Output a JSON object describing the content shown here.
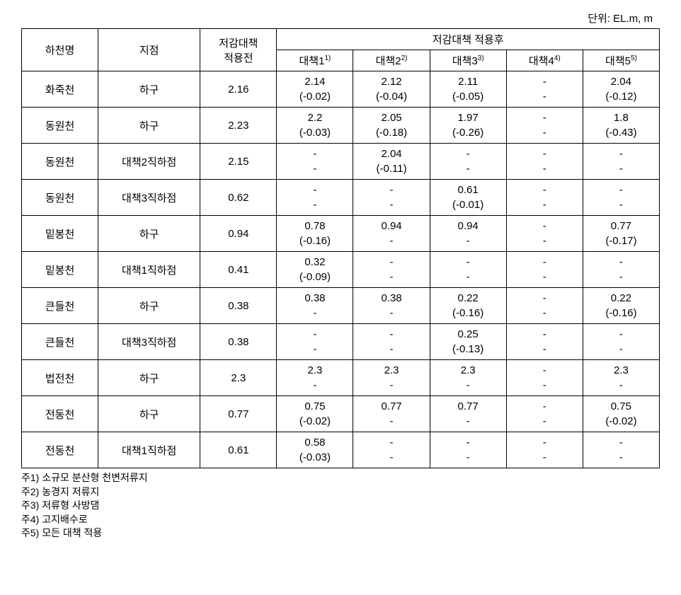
{
  "unit_label": "단위: EL.m, m",
  "headers": {
    "river": "하천명",
    "point": "지점",
    "before": "저감대책\n적용전",
    "after_group": "저감대책 적용후",
    "m1": "대책1",
    "m1_sup": "1)",
    "m2": "대책2",
    "m2_sup": "2)",
    "m3": "대책3",
    "m3_sup": "3)",
    "m4": "대책4",
    "m4_sup": "4)",
    "m5": "대책5",
    "m5_sup": "5)"
  },
  "rows": [
    {
      "river": "화죽천",
      "point": "하구",
      "before": "2.16",
      "m1": [
        "2.14",
        "(-0.02)"
      ],
      "m2": [
        "2.12",
        "(-0.04)"
      ],
      "m3": [
        "2.11",
        "(-0.05)"
      ],
      "m4": [
        "-",
        "-"
      ],
      "m5": [
        "2.04",
        "(-0.12)"
      ]
    },
    {
      "river": "동원천",
      "point": "하구",
      "before": "2.23",
      "m1": [
        "2.2",
        "(-0.03)"
      ],
      "m2": [
        "2.05",
        "(-0.18)"
      ],
      "m3": [
        "1.97",
        "(-0.26)"
      ],
      "m4": [
        "-",
        "-"
      ],
      "m5": [
        "1.8",
        "(-0.43)"
      ]
    },
    {
      "river": "동원천",
      "point": "대책2직하점",
      "before": "2.15",
      "m1": [
        "-",
        "-"
      ],
      "m2": [
        "2.04",
        "(-0.11)"
      ],
      "m3": [
        "-",
        "-"
      ],
      "m4": [
        "-",
        "-"
      ],
      "m5": [
        "-",
        "-"
      ]
    },
    {
      "river": "동원천",
      "point": "대책3직하점",
      "before": "0.62",
      "m1": [
        "-",
        "-"
      ],
      "m2": [
        "-",
        "-"
      ],
      "m3": [
        "0.61",
        "(-0.01)"
      ],
      "m4": [
        "-",
        "-"
      ],
      "m5": [
        "-",
        "-"
      ]
    },
    {
      "river": "밑봉천",
      "point": "하구",
      "before": "0.94",
      "m1": [
        "0.78",
        "(-0.16)"
      ],
      "m2": [
        "0.94",
        "-"
      ],
      "m3": [
        "0.94",
        "-"
      ],
      "m4": [
        "-",
        "-"
      ],
      "m5": [
        "0.77",
        "(-0.17)"
      ]
    },
    {
      "river": "밑봉천",
      "point": "대책1직하점",
      "before": "0.41",
      "m1": [
        "0.32",
        "(-0.09)"
      ],
      "m2": [
        "-",
        "-"
      ],
      "m3": [
        "-",
        "-"
      ],
      "m4": [
        "-",
        "-"
      ],
      "m5": [
        "-",
        "-"
      ]
    },
    {
      "river": "큰들천",
      "point": "하구",
      "before": "0.38",
      "m1": [
        "0.38",
        "-"
      ],
      "m2": [
        "0.38",
        "-"
      ],
      "m3": [
        "0.22",
        "(-0.16)"
      ],
      "m4": [
        "-",
        "-"
      ],
      "m5": [
        "0.22",
        "(-0.16)"
      ]
    },
    {
      "river": "큰들천",
      "point": "대책3직하점",
      "before": "0.38",
      "m1": [
        "-",
        "-"
      ],
      "m2": [
        "-",
        "-"
      ],
      "m3": [
        "0.25",
        "(-0.13)"
      ],
      "m4": [
        "-",
        "-"
      ],
      "m5": [
        "-",
        "-"
      ]
    },
    {
      "river": "법전천",
      "point": "하구",
      "before": "2.3",
      "m1": [
        "2.3",
        "-"
      ],
      "m2": [
        "2.3",
        "-"
      ],
      "m3": [
        "2.3",
        "-"
      ],
      "m4": [
        "-",
        "-"
      ],
      "m5": [
        "2.3",
        "-"
      ]
    },
    {
      "river": "전동천",
      "point": "하구",
      "before": "0.77",
      "m1": [
        "0.75",
        "(-0.02)"
      ],
      "m2": [
        "0.77",
        "-"
      ],
      "m3": [
        "0.77",
        "-"
      ],
      "m4": [
        "-",
        "-"
      ],
      "m5": [
        "0.75",
        "(-0.02)"
      ]
    },
    {
      "river": "전동천",
      "point": "대책1직하점",
      "before": "0.61",
      "m1": [
        "0.58",
        "(-0.03)"
      ],
      "m2": [
        "-",
        "-"
      ],
      "m3": [
        "-",
        "-"
      ],
      "m4": [
        "-",
        "-"
      ],
      "m5": [
        "-",
        "-"
      ]
    }
  ],
  "footnotes": [
    "주1) 소규모 분산형 천변저류지",
    "주2) 농경지 저류지",
    "주3) 저류형 사방댐",
    "주4) 고지배수로",
    "주5) 모든 대책 적용"
  ]
}
